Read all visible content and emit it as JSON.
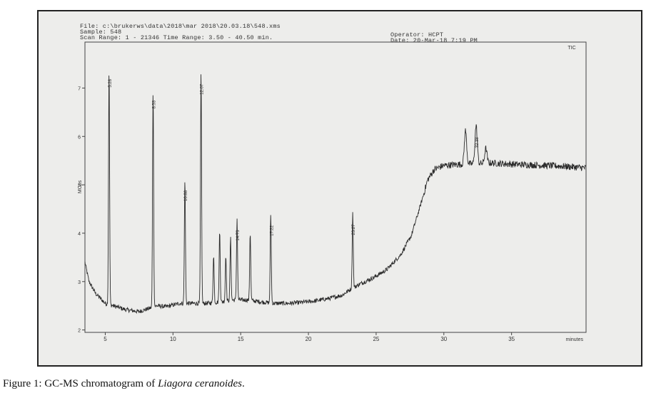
{
  "header": {
    "file": "File: c:\\brukerws\\data\\2018\\mar 2018\\20.03.18\\548.xms",
    "sample": "Sample: 548",
    "scan_range": "Scan Range: 1 - 21346 Time Range: 3.50 - 40.50 min.",
    "operator": "Operator: HCPT",
    "date": "Date: 20-Mar-18 7:19 PM"
  },
  "caption": {
    "prefix": "Figure 1: GC-MS chromatogram of ",
    "species": "Liagora ceranoides",
    "suffix": "."
  },
  "chart_data": {
    "type": "line",
    "trace_label": "TIC",
    "xlabel": "minutes",
    "ylabel": "MCps",
    "xlim": [
      3.5,
      40.5
    ],
    "ylim": [
      1.95,
      7.95
    ],
    "x_ticks": [
      5,
      10,
      15,
      20,
      25,
      30,
      35
    ],
    "y_ticks": [
      2,
      3,
      4,
      5,
      6,
      7
    ],
    "peak_labels": [
      {
        "x": 5.28,
        "label": "5.28",
        "y": 7.42
      },
      {
        "x": 8.53,
        "label": "8.53",
        "y": 6.98
      },
      {
        "x": 10.88,
        "label": "10.88",
        "y": 5.12
      },
      {
        "x": 12.07,
        "label": "12.07",
        "y": 7.32
      },
      {
        "x": 14.73,
        "label": "14.73",
        "y": 4.3
      },
      {
        "x": 17.22,
        "label": "17.22",
        "y": 4.4
      },
      {
        "x": 23.27,
        "label": "23.27",
        "y": 4.42
      },
      {
        "x": 32.38,
        "label": "32.38",
        "y": 6.22
      }
    ],
    "peaks": [
      {
        "x": 5.28,
        "y": 7.42
      },
      {
        "x": 8.53,
        "y": 6.98
      },
      {
        "x": 10.88,
        "y": 5.12
      },
      {
        "x": 12.07,
        "y": 7.32
      },
      {
        "x": 13.0,
        "y": 3.55
      },
      {
        "x": 13.45,
        "y": 4.05
      },
      {
        "x": 13.9,
        "y": 3.55
      },
      {
        "x": 14.25,
        "y": 3.9
      },
      {
        "x": 14.73,
        "y": 4.3
      },
      {
        "x": 15.7,
        "y": 4.02
      },
      {
        "x": 17.22,
        "y": 4.4
      },
      {
        "x": 23.27,
        "y": 4.42
      },
      {
        "x": 31.6,
        "y": 6.12
      },
      {
        "x": 32.38,
        "y": 6.22
      },
      {
        "x": 33.1,
        "y": 5.75
      }
    ],
    "baseline": [
      [
        3.5,
        3.4
      ],
      [
        3.8,
        3.0
      ],
      [
        4.3,
        2.75
      ],
      [
        5.0,
        2.55
      ],
      [
        5.6,
        2.5
      ],
      [
        6.5,
        2.42
      ],
      [
        7.5,
        2.38
      ],
      [
        8.3,
        2.45
      ],
      [
        8.8,
        2.5
      ],
      [
        9.5,
        2.48
      ],
      [
        10.5,
        2.55
      ],
      [
        11.5,
        2.55
      ],
      [
        12.5,
        2.55
      ],
      [
        13.5,
        2.58
      ],
      [
        14.5,
        2.62
      ],
      [
        15.5,
        2.62
      ],
      [
        16.5,
        2.58
      ],
      [
        17.5,
        2.55
      ],
      [
        18.5,
        2.55
      ],
      [
        19.5,
        2.57
      ],
      [
        20.5,
        2.6
      ],
      [
        21.5,
        2.65
      ],
      [
        22.5,
        2.72
      ],
      [
        23.0,
        2.82
      ],
      [
        23.8,
        2.95
      ],
      [
        24.8,
        3.08
      ],
      [
        25.8,
        3.25
      ],
      [
        26.8,
        3.55
      ],
      [
        27.6,
        3.95
      ],
      [
        28.3,
        4.6
      ],
      [
        28.8,
        5.1
      ],
      [
        29.3,
        5.32
      ],
      [
        30.0,
        5.4
      ],
      [
        31.0,
        5.42
      ],
      [
        33.5,
        5.45
      ],
      [
        35.5,
        5.42
      ],
      [
        37.5,
        5.4
      ],
      [
        39.0,
        5.38
      ],
      [
        40.5,
        5.35
      ]
    ]
  }
}
